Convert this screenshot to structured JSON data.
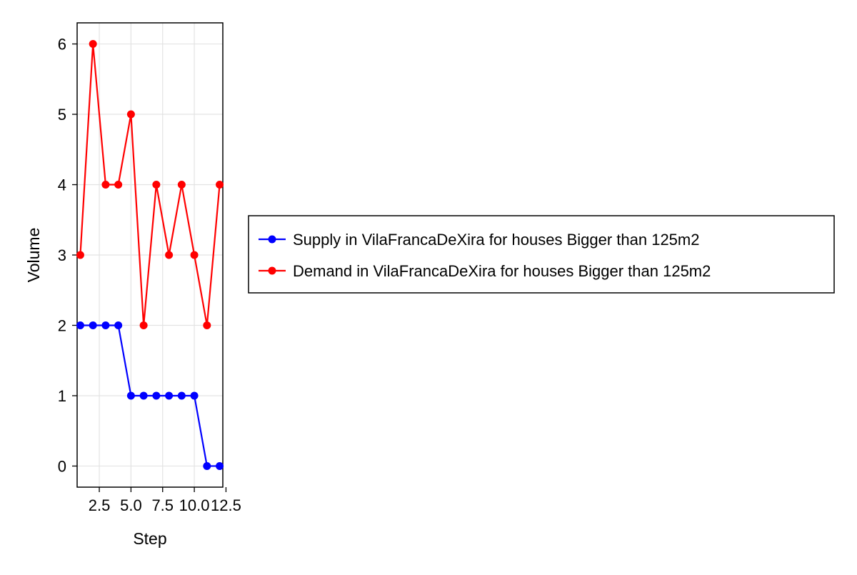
{
  "chart_data": {
    "type": "line",
    "title": "",
    "xlabel": "Step",
    "ylabel": "Volume",
    "xlim": [
      0.75,
      12.25
    ],
    "ylim": [
      -0.3,
      6.3
    ],
    "xticks": [
      2.5,
      5.0,
      7.5,
      10.0,
      12.5
    ],
    "xtick_labels": [
      "2.5",
      "5.0",
      "7.5",
      "10.0",
      "12.5"
    ],
    "yticks": [
      0,
      1,
      2,
      3,
      4,
      5,
      6
    ],
    "ytick_labels": [
      "0",
      "1",
      "2",
      "3",
      "4",
      "5",
      "6"
    ],
    "grid": true,
    "legend_position": "right",
    "x": [
      1,
      2,
      3,
      4,
      5,
      6,
      7,
      8,
      9,
      10,
      11,
      12
    ],
    "series": [
      {
        "name": "Supply in VilaFrancaDeXira for houses Bigger than 125m2",
        "color": "#0000ff",
        "values": [
          2,
          2,
          2,
          2,
          1,
          1,
          1,
          1,
          1,
          1,
          0,
          0
        ]
      },
      {
        "name": "Demand in VilaFrancaDeXira for houses Bigger than 125m2",
        "color": "#ff0000",
        "values": [
          3,
          6,
          4,
          4,
          5,
          2,
          4,
          3,
          4,
          3,
          2,
          4
        ]
      }
    ]
  }
}
